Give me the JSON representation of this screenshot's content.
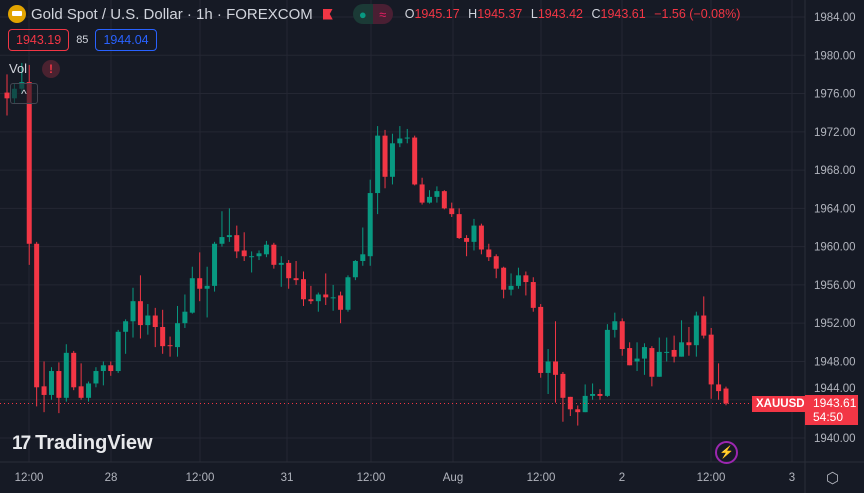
{
  "header": {
    "title": "Gold Spot / U.S. Dollar · 1h · FOREXCOM",
    "open_label": "O",
    "open": "1945.17",
    "high_label": "H",
    "high": "1945.37",
    "low_label": "L",
    "low": "1943.42",
    "close_label": "C",
    "close": "1943.61",
    "change": "−1.56 (−0.08%)",
    "pill_left": "●",
    "pill_right": "≈"
  },
  "quote": {
    "bid": "1943.19",
    "spread": "85",
    "ask": "1944.04"
  },
  "indicator": {
    "label": "Vol",
    "warning": "!",
    "collapse": "^"
  },
  "branding": {
    "logo_mark": "17",
    "name": "TradingView"
  },
  "tags": {
    "symbol": "XAUUSD",
    "price": "1943.61",
    "countdown": "54:50"
  },
  "icons": {
    "bolt": "⚡",
    "settings": "⬡"
  },
  "colors": {
    "up": "#089981",
    "down": "#f23645",
    "grid": "#242733",
    "bg": "#161a25"
  },
  "chart_data": {
    "type": "candlestick",
    "title": "Gold Spot / U.S. Dollar · 1h · FOREXCOM",
    "ylim": [
      1940,
      1984
    ],
    "y_ticks": [
      "1984.00",
      "1980.00",
      "1976.00",
      "1972.00",
      "1968.00",
      "1964.00",
      "1960.00",
      "1956.00",
      "1952.00",
      "1948.00",
      "1944.00",
      "1940.00"
    ],
    "x_ticks": [
      "12:00",
      "28",
      "12:00",
      "31",
      "12:00",
      "Aug",
      "12:00",
      "2",
      "12:00",
      "3"
    ],
    "last_price": 1943.61,
    "ohlc": [
      [
        1976.1,
        1978.0,
        1973.7,
        1975.5
      ],
      [
        1975.5,
        1977.0,
        1975.0,
        1976.5
      ],
      [
        1976.5,
        1979.2,
        1976.0,
        1977.2
      ],
      [
        1977.2,
        1979.0,
        1958.1,
        1960.3
      ],
      [
        1960.3,
        1960.5,
        1943.3,
        1945.3
      ],
      [
        1945.4,
        1948.0,
        1942.7,
        1944.5
      ],
      [
        1944.5,
        1947.4,
        1944.0,
        1947.0
      ],
      [
        1947.0,
        1947.9,
        1942.6,
        1944.2
      ],
      [
        1944.2,
        1949.8,
        1943.8,
        1948.9
      ],
      [
        1948.9,
        1949.1,
        1945.0,
        1945.3
      ],
      [
        1945.4,
        1947.8,
        1944.0,
        1944.2
      ],
      [
        1944.2,
        1945.9,
        1943.8,
        1945.7
      ],
      [
        1945.7,
        1947.4,
        1945.3,
        1947.0
      ],
      [
        1947.0,
        1948.0,
        1945.5,
        1947.6
      ],
      [
        1947.6,
        1948.0,
        1946.5,
        1947.0
      ],
      [
        1947.0,
        1951.3,
        1946.8,
        1951.1
      ],
      [
        1951.1,
        1952.4,
        1948.8,
        1952.2
      ],
      [
        1952.2,
        1955.7,
        1950.5,
        1954.3
      ],
      [
        1954.3,
        1957.0,
        1950.4,
        1951.8
      ],
      [
        1951.8,
        1954.0,
        1950.8,
        1952.8
      ],
      [
        1952.8,
        1953.6,
        1949.5,
        1951.6
      ],
      [
        1951.6,
        1953.4,
        1948.8,
        1949.6
      ],
      [
        1949.7,
        1950.6,
        1948.5,
        1949.6
      ],
      [
        1949.5,
        1953.8,
        1948.5,
        1952.0
      ],
      [
        1952.0,
        1955.0,
        1951.5,
        1953.2
      ],
      [
        1953.1,
        1957.9,
        1953.0,
        1956.7
      ],
      [
        1956.7,
        1959.4,
        1954.3,
        1955.6
      ],
      [
        1955.6,
        1957.9,
        1952.6,
        1955.9
      ],
      [
        1955.9,
        1960.5,
        1955.3,
        1960.3
      ],
      [
        1960.3,
        1963.7,
        1960.0,
        1961.0
      ],
      [
        1961.0,
        1964.0,
        1960.5,
        1961.2
      ],
      [
        1961.2,
        1962.2,
        1958.8,
        1959.5
      ],
      [
        1959.6,
        1961.5,
        1958.5,
        1959.0
      ],
      [
        1959.0,
        1959.5,
        1957.3,
        1959.0
      ],
      [
        1959.0,
        1959.6,
        1958.6,
        1959.3
      ],
      [
        1959.2,
        1960.6,
        1958.9,
        1960.2
      ],
      [
        1960.2,
        1960.4,
        1957.7,
        1958.1
      ],
      [
        1958.1,
        1959.0,
        1955.8,
        1958.3
      ],
      [
        1958.3,
        1958.6,
        1955.6,
        1956.7
      ],
      [
        1956.7,
        1958.5,
        1956.0,
        1956.5
      ],
      [
        1956.6,
        1957.4,
        1953.8,
        1954.5
      ],
      [
        1954.5,
        1955.9,
        1954.0,
        1954.3
      ],
      [
        1954.3,
        1955.2,
        1953.2,
        1955.0
      ],
      [
        1955.0,
        1957.2,
        1953.9,
        1954.7
      ],
      [
        1954.7,
        1956.0,
        1953.3,
        1954.7
      ],
      [
        1954.9,
        1955.3,
        1952.0,
        1953.4
      ],
      [
        1953.4,
        1957.0,
        1953.2,
        1956.8
      ],
      [
        1956.8,
        1958.6,
        1956.5,
        1958.5
      ],
      [
        1958.5,
        1962.0,
        1958.0,
        1959.2
      ],
      [
        1959.0,
        1967.0,
        1958.0,
        1965.6
      ],
      [
        1965.6,
        1972.6,
        1963.4,
        1971.6
      ],
      [
        1971.6,
        1972.2,
        1966.1,
        1967.3
      ],
      [
        1967.3,
        1971.8,
        1966.5,
        1970.8
      ],
      [
        1970.8,
        1972.6,
        1970.4,
        1971.3
      ],
      [
        1971.3,
        1972.3,
        1970.8,
        1971.4
      ],
      [
        1971.4,
        1971.6,
        1966.4,
        1966.5
      ],
      [
        1966.5,
        1967.2,
        1964.4,
        1964.6
      ],
      [
        1964.6,
        1965.9,
        1964.5,
        1965.2
      ],
      [
        1965.2,
        1966.3,
        1964.6,
        1965.8
      ],
      [
        1965.8,
        1965.9,
        1963.9,
        1964.0
      ],
      [
        1964.0,
        1964.6,
        1963.1,
        1963.4
      ],
      [
        1963.4,
        1964.0,
        1960.8,
        1960.9
      ],
      [
        1960.9,
        1961.2,
        1959.0,
        1960.5
      ],
      [
        1960.5,
        1962.9,
        1959.6,
        1962.2
      ],
      [
        1962.2,
        1962.4,
        1959.2,
        1959.7
      ],
      [
        1959.7,
        1960.3,
        1958.5,
        1958.9
      ],
      [
        1959.0,
        1959.2,
        1956.7,
        1957.7
      ],
      [
        1957.8,
        1957.9,
        1954.6,
        1955.5
      ],
      [
        1955.5,
        1957.2,
        1954.9,
        1955.9
      ],
      [
        1955.9,
        1957.8,
        1955.6,
        1957.0
      ],
      [
        1957.0,
        1957.4,
        1954.9,
        1956.3
      ],
      [
        1956.3,
        1956.8,
        1953.2,
        1953.6
      ],
      [
        1953.7,
        1954.0,
        1946.3,
        1946.8
      ],
      [
        1946.8,
        1949.3,
        1944.6,
        1948.0
      ],
      [
        1948.0,
        1952.2,
        1943.7,
        1946.6
      ],
      [
        1946.7,
        1946.9,
        1941.7,
        1944.2
      ],
      [
        1944.3,
        1944.3,
        1942.3,
        1943.0
      ],
      [
        1943.0,
        1943.4,
        1941.3,
        1942.7
      ],
      [
        1942.7,
        1945.6,
        1942.7,
        1944.4
      ],
      [
        1944.4,
        1945.7,
        1944.0,
        1944.6
      ],
      [
        1944.6,
        1945.1,
        1944.0,
        1944.4
      ],
      [
        1944.4,
        1951.9,
        1944.3,
        1951.3
      ],
      [
        1951.3,
        1953.1,
        1950.5,
        1952.2
      ],
      [
        1952.2,
        1952.5,
        1948.6,
        1949.3
      ],
      [
        1949.4,
        1950.0,
        1947.6,
        1947.6
      ],
      [
        1948.0,
        1950.0,
        1947.0,
        1948.3
      ],
      [
        1948.3,
        1949.9,
        1946.6,
        1949.5
      ],
      [
        1949.4,
        1949.6,
        1945.4,
        1946.4
      ],
      [
        1946.4,
        1950.5,
        1946.4,
        1949.0
      ],
      [
        1949.0,
        1950.5,
        1948.0,
        1949.0
      ],
      [
        1949.2,
        1950.7,
        1947.9,
        1948.5
      ],
      [
        1948.5,
        1952.3,
        1948.5,
        1950.0
      ],
      [
        1950.0,
        1951.6,
        1948.6,
        1949.7
      ],
      [
        1949.7,
        1953.2,
        1948.5,
        1952.8
      ],
      [
        1952.8,
        1954.8,
        1950.4,
        1950.7
      ],
      [
        1950.8,
        1951.5,
        1944.1,
        1945.6
      ],
      [
        1945.6,
        1947.8,
        1944.0,
        1944.9
      ],
      [
        1945.17,
        1945.37,
        1943.42,
        1943.61
      ]
    ]
  }
}
